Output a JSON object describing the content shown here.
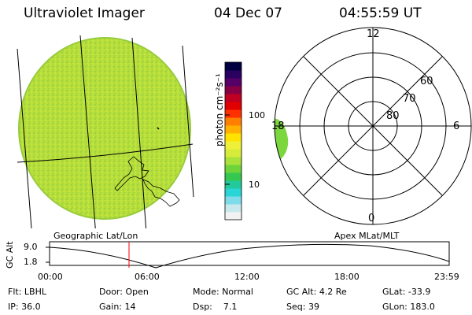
{
  "header": {
    "title": "Ultraviolet Imager",
    "date": "04 Dec 07",
    "time": "04:55:59 UT"
  },
  "colorbar": {
    "unit_label": "photon cm⁻²s⁻¹",
    "ticks": [
      "100",
      "10"
    ],
    "colors": [
      "#f2f2f2",
      "#c8e8ee",
      "#7fdbe8",
      "#29d5d5",
      "#22c99a",
      "#35c850",
      "#6fd43a",
      "#a8e23a",
      "#d7ec3a",
      "#eef03a",
      "#ffe200",
      "#ffb000",
      "#ff7f00",
      "#ff3000",
      "#e00000",
      "#c00020",
      "#880044",
      "#550066",
      "#2a0060",
      "#000040"
    ]
  },
  "polar_plot": {
    "lat_labels": [
      "80",
      "70",
      "60"
    ],
    "mlt_labels": {
      "top": "12",
      "bottom": "0",
      "left": "18",
      "right": "6"
    }
  },
  "timeline": {
    "left_label": "Geographic Lat/Lon",
    "right_label": "Apex MLat/MLT",
    "axis_title": "GC Alt",
    "y_ticks": [
      "9.0",
      "1.8"
    ],
    "x_ticks": [
      "00:00",
      "06:00",
      "12:00",
      "18:00",
      "23:59"
    ],
    "current_marker_color": "#ff0000"
  },
  "status": {
    "row1": [
      {
        "label": "Flt:",
        "value": "LBHL"
      },
      {
        "label": "Door:",
        "value": "Open"
      },
      {
        "label": "Mode:",
        "value": "Normal"
      },
      {
        "label": "GC Alt:",
        "value": "4.2 Re"
      },
      {
        "label": "GLat:",
        "value": "-33.9"
      }
    ],
    "row2": [
      {
        "label": "IP:",
        "value": "36.0"
      },
      {
        "label": "Gain:",
        "value": "14"
      },
      {
        "label": "Dsp:",
        "value": "7.1"
      },
      {
        "label": "Seq:",
        "value": "39"
      },
      {
        "label": "GLon:",
        "value": "183.0"
      }
    ]
  }
}
